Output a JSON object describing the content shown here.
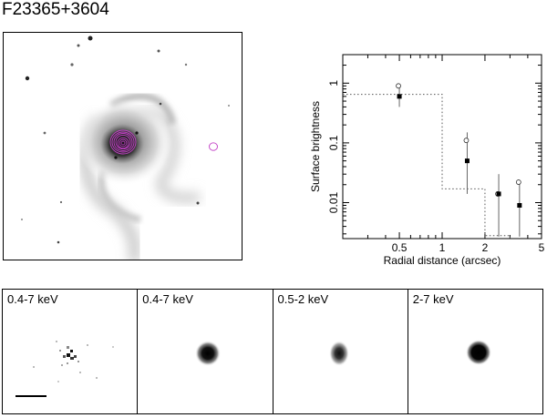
{
  "figure": {
    "title": "F23365+3604"
  },
  "chart_data": {
    "type": "scatter",
    "xlabel": "Radial distance (arcsec)",
    "ylabel": "Surface brightness",
    "xscale": "log",
    "yscale": "log",
    "xlim": [
      0.2,
      5
    ],
    "ylim": [
      0.0025,
      3
    ],
    "x_ticks": [
      {
        "value": 0.5,
        "label": "0.5"
      },
      {
        "value": 1,
        "label": "1"
      },
      {
        "value": 2,
        "label": "2"
      },
      {
        "value": 5,
        "label": "5"
      }
    ],
    "y_ticks": [
      {
        "value": 1,
        "label": "1"
      },
      {
        "value": 0.1,
        "label": "0.1"
      },
      {
        "value": 0.01,
        "label": "0.01"
      }
    ],
    "series": [
      {
        "marker": "filled-square",
        "x": [
          0.5,
          1.5,
          2.5,
          3.5
        ],
        "y": [
          0.6,
          0.05,
          0.014,
          0.009
        ],
        "err_low": [
          0.4,
          0.014,
          0.0027,
          0.0027
        ],
        "err_high": [
          0.85,
          0.15,
          0.03,
          0.023
        ]
      },
      {
        "marker": "open-circle",
        "x": [
          0.5,
          1.5,
          2.5,
          3.5
        ],
        "y": [
          0.9,
          0.11,
          0.014,
          0.022
        ]
      }
    ],
    "model_step": {
      "style": "dotted",
      "edges": [
        0.2,
        1,
        2,
        3
      ],
      "values": [
        0.65,
        0.017,
        0.0028
      ]
    },
    "grid": false,
    "legend": "none"
  },
  "panels": [
    {
      "label": "0.4-7 keV"
    },
    {
      "label": "0.4-7 keV"
    },
    {
      "label": "0.5-2 keV"
    },
    {
      "label": "2-7 keV"
    }
  ],
  "colors": {
    "contour": "#c23fc6",
    "marker": "#000000",
    "background": "#ffffff"
  }
}
